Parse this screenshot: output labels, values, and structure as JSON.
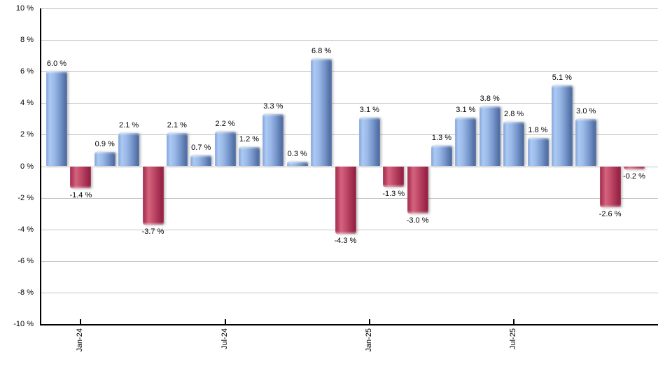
{
  "chart_data": {
    "type": "bar",
    "title": "",
    "xlabel": "",
    "ylabel": "",
    "grid": true,
    "legend": null,
    "values": [
      6.0,
      -1.4,
      0.9,
      2.1,
      -3.7,
      2.1,
      0.7,
      2.2,
      1.2,
      3.3,
      0.3,
      6.8,
      -4.3,
      3.1,
      -1.3,
      -3.0,
      1.3,
      3.1,
      3.8,
      2.8,
      1.8,
      5.1,
      3.0,
      -2.6,
      -0.2
    ],
    "value_labels": [
      "6.0 %",
      "-1.4 %",
      "0.9 %",
      "2.1 %",
      "-3.7 %",
      "2.1 %",
      "0.7 %",
      "2.2 %",
      "1.2 %",
      "3.3 %",
      "0.3 %",
      "6.8 %",
      "-4.3 %",
      "3.1 %",
      "-1.3 %",
      "-3.0 %",
      "1.3 %",
      "3.1 %",
      "3.8 %",
      "2.8 %",
      "1.8 %",
      "5.1 %",
      "3.0 %",
      "-2.6 %",
      "-0.2 %"
    ],
    "y_axis": {
      "min": -10,
      "max": 10,
      "ticks": [
        {
          "value": 10,
          "label": "10 %"
        },
        {
          "value": 8,
          "label": "8 %"
        },
        {
          "value": 6,
          "label": "6 %"
        },
        {
          "value": 4,
          "label": "4 %"
        },
        {
          "value": 2,
          "label": "2 %"
        },
        {
          "value": 0,
          "label": "0 %"
        },
        {
          "value": -2,
          "label": "-2 %"
        },
        {
          "value": -4,
          "label": "-4 %"
        },
        {
          "value": -6,
          "label": "-6 %"
        },
        {
          "value": -8,
          "label": "-8 %"
        },
        {
          "value": -10,
          "label": "-10 %"
        }
      ]
    },
    "x_axis": {
      "ticks": [
        {
          "bar_index": 1,
          "label": "Jan-24"
        },
        {
          "bar_index": 7,
          "label": "Jul-24"
        },
        {
          "bar_index": 13,
          "label": "Jan-25"
        },
        {
          "bar_index": 19,
          "label": "Jul-25"
        }
      ]
    },
    "colors": {
      "positive_bar_stops": [
        "#7ea0d8",
        "#abc9f3",
        "#9bbae8",
        "#7897cc",
        "#5c7aae",
        "#47669c"
      ],
      "negative_bar_stops": [
        "#a02648",
        "#d4647f",
        "#c24c69",
        "#a83254",
        "#8c1c3c"
      ],
      "gridline": "#c4c4c4",
      "axis": "#000000",
      "label_text": "#000000",
      "background": "#ffffff"
    }
  }
}
